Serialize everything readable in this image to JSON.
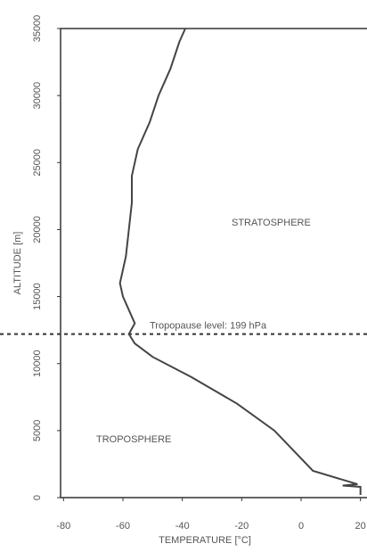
{
  "chart_data": {
    "type": "line",
    "xlabel": "TEMPERATURE [°C]",
    "ylabel": "ALTITUDE [m]",
    "x": [
      20,
      20,
      14,
      19,
      4,
      -9,
      -21.5,
      -37,
      -50,
      -56,
      -58,
      -56,
      -60,
      -61,
      -59,
      -58,
      -57,
      -57,
      -55,
      -51,
      -48,
      -44,
      -41,
      -39
    ],
    "series": [
      {
        "color": "#444444",
        "values": [
          200,
          800,
          900,
          1000,
          2000,
          5000,
          7000,
          9000,
          10500,
          11500,
          12200,
          13000,
          15000,
          16000,
          18000,
          20000,
          22000,
          24000,
          26000,
          28000,
          30000,
          32000,
          34000,
          35000
        ]
      }
    ],
    "xlim": [
      -81,
      21
    ],
    "xticks": [
      -80,
      -60,
      -40,
      -20,
      0,
      20
    ],
    "ylim": [
      0,
      35000
    ],
    "yticks": [
      0,
      5000,
      10000,
      15000,
      20000,
      25000,
      30000,
      35000
    ],
    "reference_line": {
      "value": 12200,
      "label": "Tropopause level: 199 hPa"
    },
    "annotations": [
      "STRATOSPHERE",
      "TROPOSPHERE"
    ]
  }
}
